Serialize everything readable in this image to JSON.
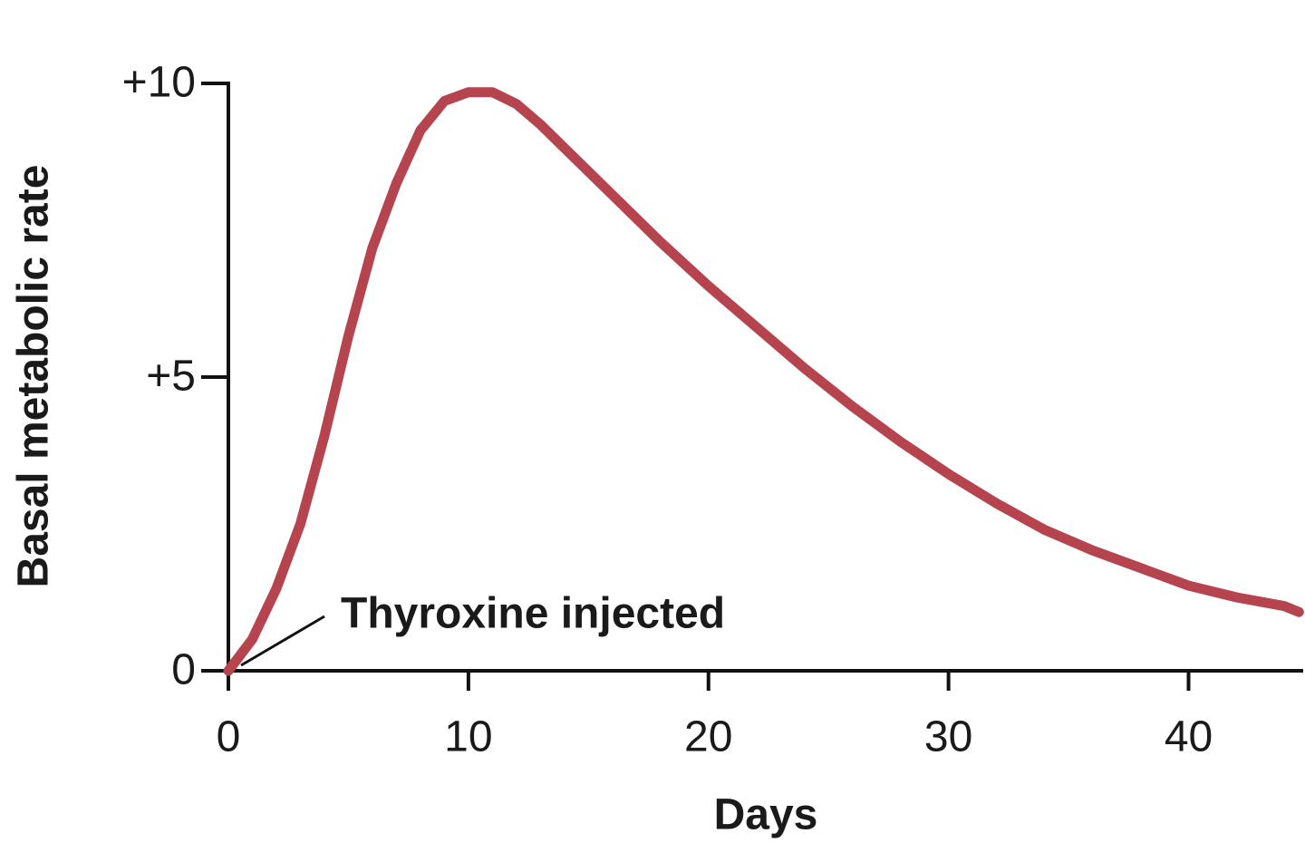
{
  "chart_data": {
    "type": "line",
    "y_label": "Basal metabolic rate",
    "x_label": "Days",
    "annotation": "Thyroxine injected",
    "x": [
      0,
      1,
      2,
      3,
      4,
      5,
      6,
      7,
      8,
      9,
      10,
      11,
      12,
      13,
      14,
      16,
      18,
      20,
      22,
      24,
      26,
      28,
      30,
      32,
      34,
      36,
      38,
      40,
      42,
      44,
      44.6
    ],
    "values": [
      0,
      0.54,
      1.4,
      2.5,
      4.0,
      5.7,
      7.2,
      8.3,
      9.2,
      9.7,
      9.85,
      9.85,
      9.65,
      9.3,
      8.9,
      8.1,
      7.3,
      6.55,
      5.85,
      5.15,
      4.5,
      3.9,
      3.35,
      2.85,
      2.4,
      2.05,
      1.75,
      1.45,
      1.25,
      1.1,
      1.0
    ],
    "color": "#b5444e",
    "xlim": [
      0,
      44.7
    ],
    "xticks": [
      0,
      10,
      20,
      30,
      40
    ],
    "ylim": [
      0,
      10
    ],
    "yticks": [
      0,
      {
        "value": 5,
        "label": "+5"
      },
      {
        "value": 10,
        "label": "+10"
      }
    ]
  }
}
